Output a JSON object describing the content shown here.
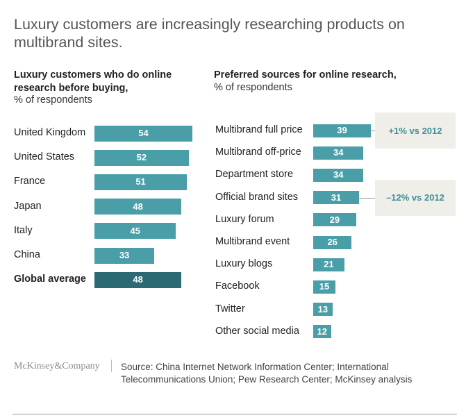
{
  "title": "Luxury customers are increasingly researching products on multibrand sites.",
  "chart_data": [
    {
      "type": "bar",
      "title": "Luxury customers who do online research before buying,",
      "subtitle": "% of respondents",
      "categories": [
        "United Kingdom",
        "United States",
        "France",
        "Japan",
        "Italy",
        "China",
        "Global average"
      ],
      "values": [
        54,
        52,
        51,
        48,
        45,
        33,
        48
      ],
      "color": "#4a9ea8",
      "highlight": "Global average",
      "highlight_color": "#2c6a73"
    },
    {
      "type": "bar",
      "title": "Preferred sources for online research,",
      "subtitle": "% of respondents",
      "categories": [
        "Multibrand full price",
        "Multibrand off-price",
        "Department store",
        "Official brand sites",
        "Luxury forum",
        "Multibrand event",
        "Luxury blogs",
        "Facebook",
        "Twitter",
        "Other social media"
      ],
      "values": [
        39,
        34,
        34,
        31,
        29,
        26,
        21,
        15,
        13,
        12
      ],
      "color": "#4a9ea8",
      "annotations": [
        {
          "category": "Multibrand full price",
          "text": "+1% vs 2012"
        },
        {
          "category": "Official brand sites",
          "text": "–12% vs 2012"
        }
      ]
    }
  ],
  "footer": {
    "brand": "McKinsey&Company",
    "source": "Source: China Internet Network Information Center; International Telecommunications Union; Pew Research Center; McKinsey analysis"
  }
}
